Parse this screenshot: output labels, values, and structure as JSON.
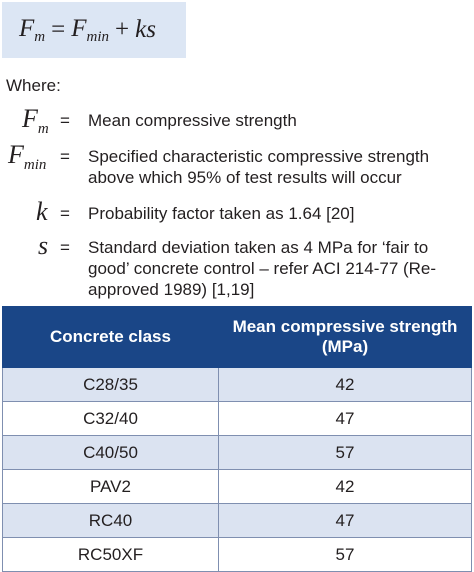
{
  "formula": {
    "lhs_base": "F",
    "lhs_sub": "m",
    "equals": "=",
    "rhs1_base": "F",
    "rhs1_sub": "min",
    "plus": "+",
    "rhs2": "ks"
  },
  "where_label": "Where:",
  "definitions": [
    {
      "symbol": "F",
      "symbol_sub": "m",
      "equals": "=",
      "text": "Mean compressive strength"
    },
    {
      "symbol": "F",
      "symbol_sub": "min",
      "equals": "=",
      "text": "Specified characteristic compressive strength above which 95% of test results will occur"
    },
    {
      "symbol": "k",
      "symbol_sub": "",
      "equals": "=",
      "text": "Probability factor taken as 1.64 [20]"
    },
    {
      "symbol": "s",
      "symbol_sub": "",
      "equals": "=",
      "text": "Standard deviation taken as 4 MPa for ‘fair to good’ concrete control – refer ACI 214-77 (Re-approved 1989) [1,19]"
    }
  ],
  "table": {
    "headers": [
      "Concrete class",
      "Mean compressive strength (MPa)"
    ],
    "rows": [
      [
        "C28/35",
        "42"
      ],
      [
        "C32/40",
        "47"
      ],
      [
        "C40/50",
        "57"
      ],
      [
        "PAV2",
        "42"
      ],
      [
        "RC40",
        "47"
      ],
      [
        "RC50XF",
        "57"
      ]
    ]
  },
  "colors": {
    "formula_bg": "#dce6f4",
    "header_bg": "#1a4687",
    "row_alt_bg": "#dbe3f1"
  }
}
